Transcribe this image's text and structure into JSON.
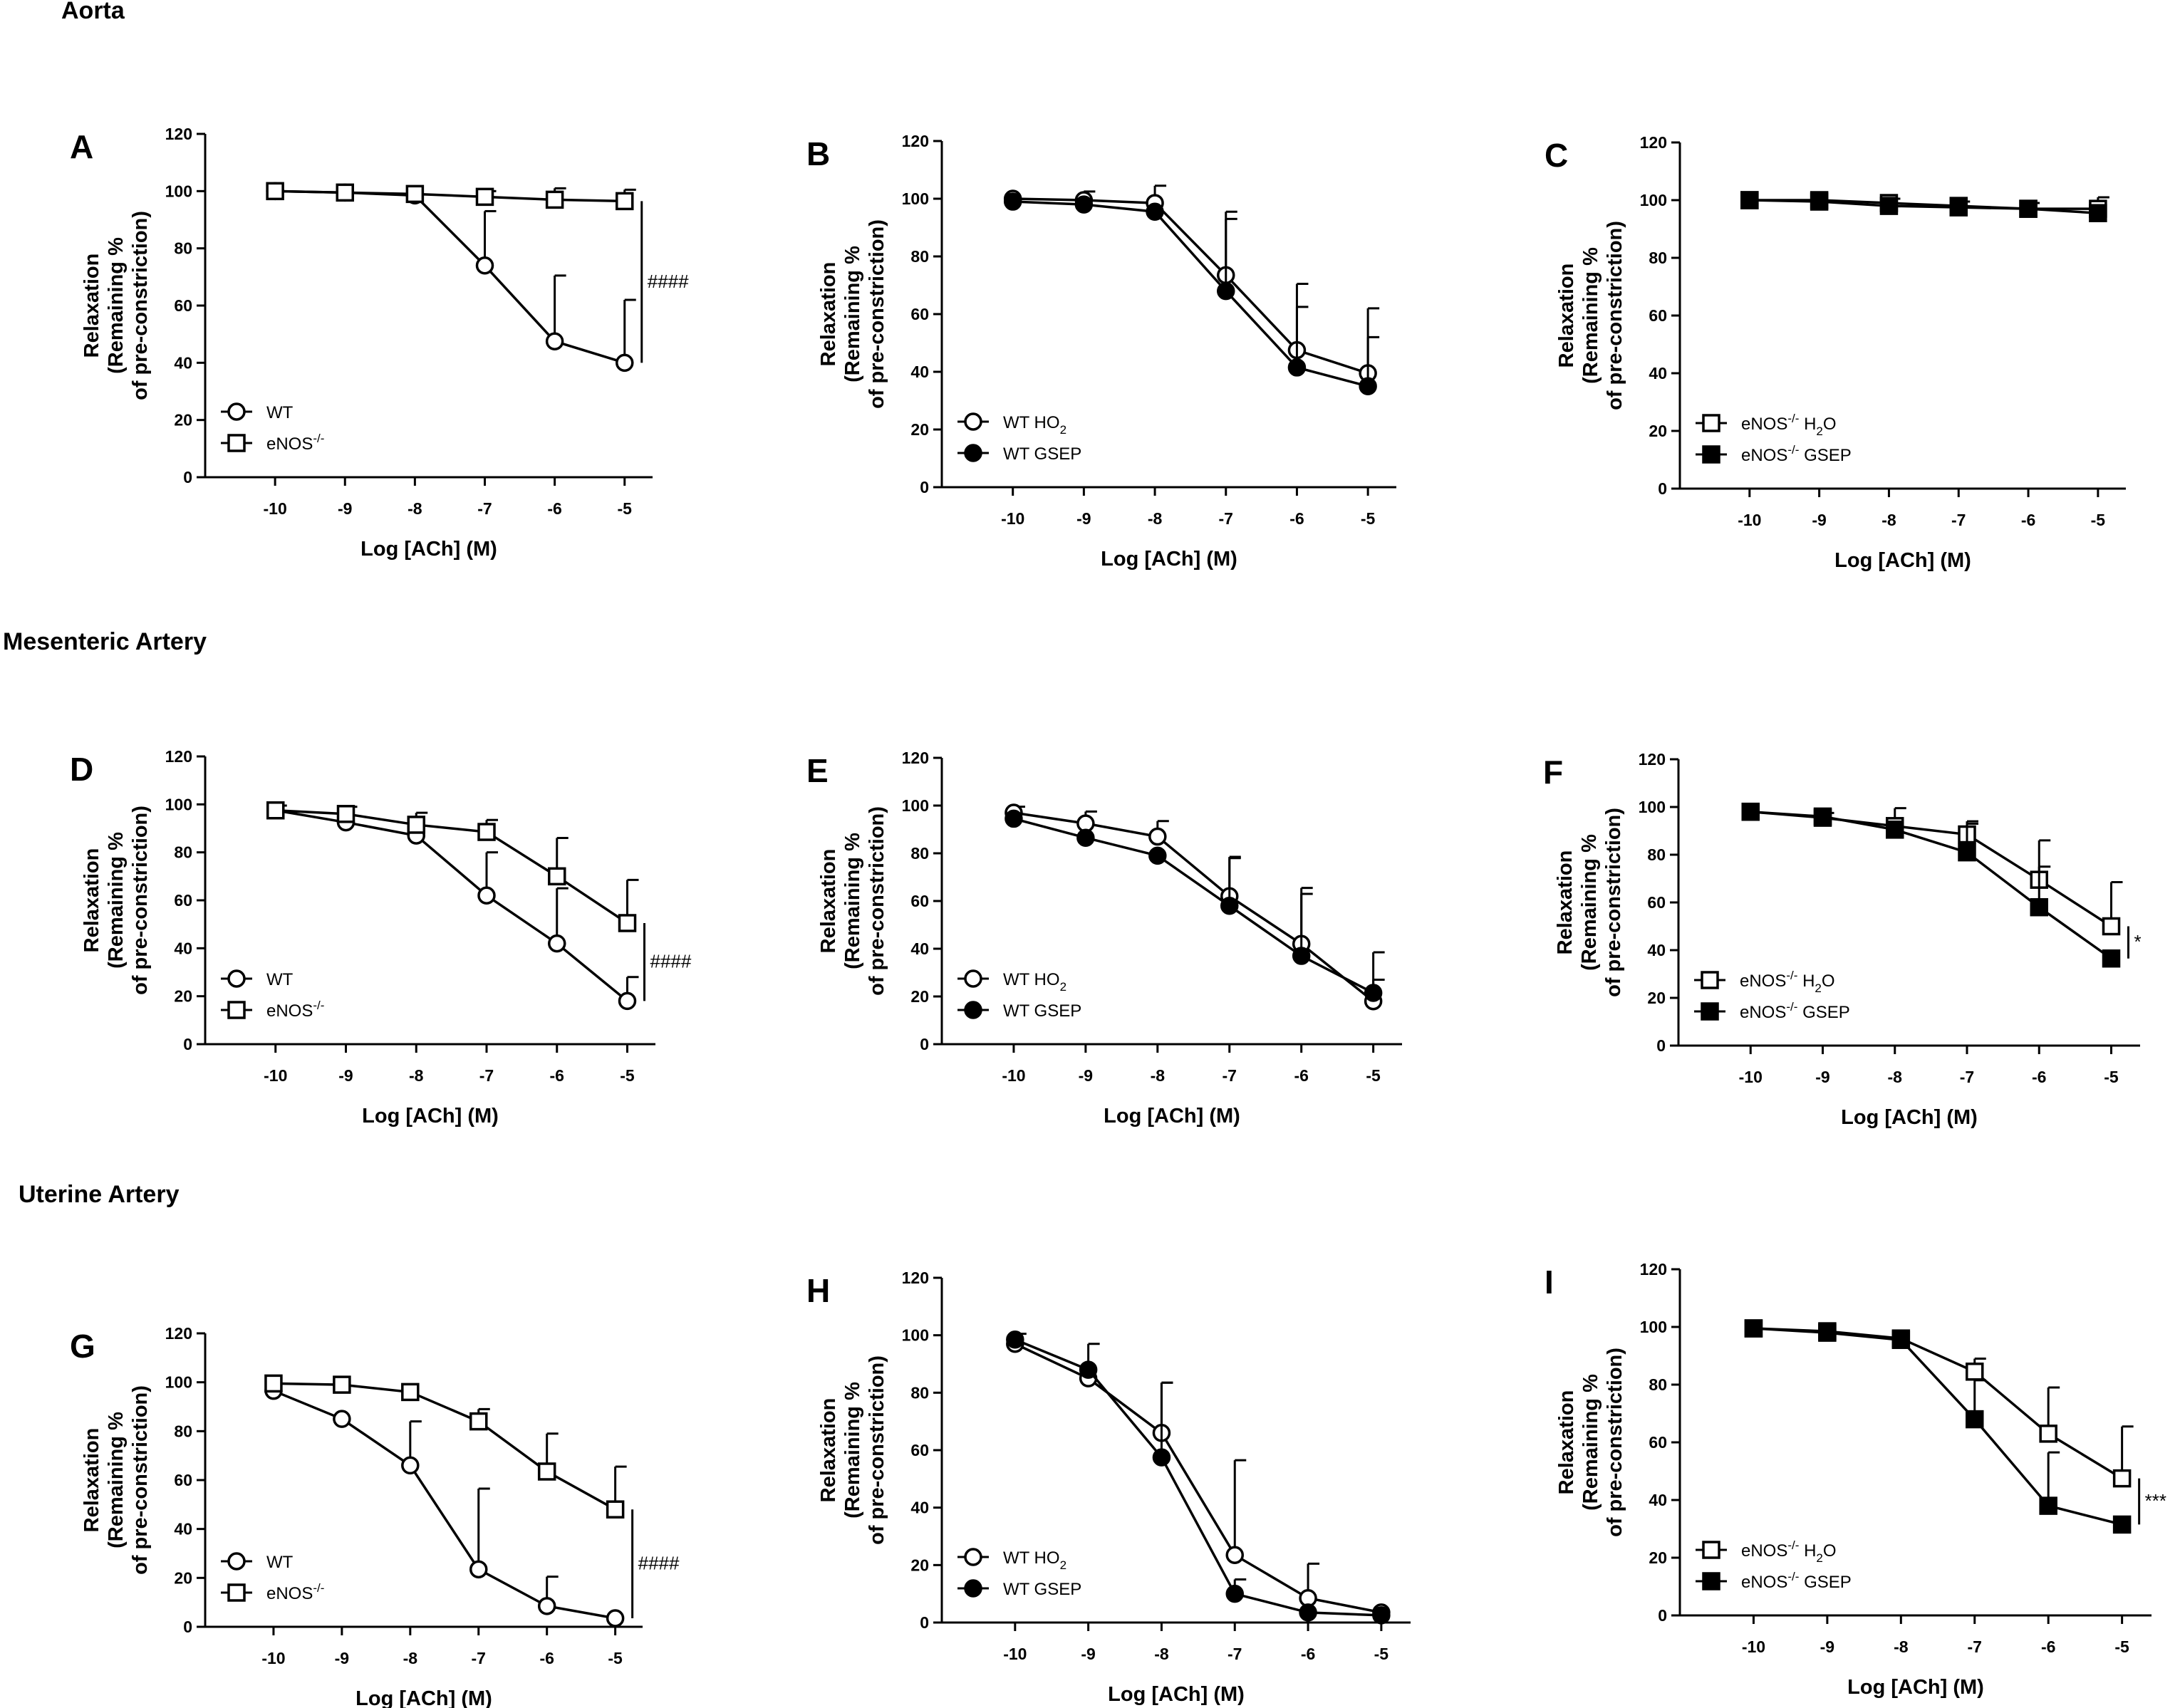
{
  "figure": {
    "sections": [
      "Aorta",
      "Mesenteric Artery",
      "Uterine Artery"
    ]
  },
  "chart_data": [
    {
      "panel": "A",
      "type": "line",
      "xlabel": "Log [ACh] (M)",
      "ylabel": [
        "Relaxation",
        "(Remaining %",
        "of pre-constriction)"
      ],
      "x": [
        -10,
        -9,
        -8,
        -7,
        -6,
        -5
      ],
      "xlim": [
        -11,
        -4.6
      ],
      "ylim": [
        0,
        120
      ],
      "xticks": [
        "-10",
        "-9",
        "-8",
        "-7",
        "-6",
        "-5"
      ],
      "yticks": [
        "0",
        "20",
        "40",
        "60",
        "80",
        "100",
        "120"
      ],
      "series": [
        {
          "name": "WT",
          "sup": "",
          "marker": "circle-open",
          "values": [
            100,
            99.5,
            98.5,
            74,
            47.5,
            40
          ],
          "errors": [
            0,
            0,
            0,
            19,
            23,
            22
          ]
        },
        {
          "name": "eNOS",
          "sup": "-/-",
          "marker": "square-open",
          "values": [
            100,
            99.5,
            99,
            98,
            97,
            96.5
          ],
          "errors": [
            0,
            0,
            0,
            2,
            4,
            4
          ]
        }
      ],
      "legend": "bottom-left",
      "significance": {
        "label": "####",
        "from": 96.5,
        "to": 40
      }
    },
    {
      "panel": "B",
      "type": "line",
      "xlabel": "Log [ACh] (M)",
      "ylabel": [
        "Relaxation",
        "(Remaining %",
        "of pre-constriction)"
      ],
      "x": [
        -10,
        -9,
        -8,
        -7,
        -6,
        -5
      ],
      "xlim": [
        -11,
        -4.6
      ],
      "ylim": [
        0,
        120
      ],
      "xticks": [
        "-10",
        "-9",
        "-8",
        "-7",
        "-6",
        "-5"
      ],
      "yticks": [
        "0",
        "20",
        "40",
        "60",
        "80",
        "100",
        "120"
      ],
      "series": [
        {
          "name": "WT H",
          "sub": "2",
          "after": "O",
          "marker": "circle-open",
          "values": [
            100,
            99.5,
            98.5,
            73.5,
            47.5,
            39.5
          ],
          "errors": [
            0,
            3,
            6,
            22,
            23,
            22.5
          ]
        },
        {
          "name": "WT GSEP",
          "marker": "circle-filled",
          "values": [
            99,
            98,
            95.5,
            68,
            41.5,
            35
          ],
          "errors": [
            0,
            0,
            0,
            25,
            21,
            17
          ]
        }
      ],
      "legend": "bottom-left"
    },
    {
      "panel": "C",
      "type": "line",
      "xlabel": "Log [ACh] (M)",
      "ylabel": [
        "Relaxation",
        "(Remaining %",
        "of pre-constriction)"
      ],
      "x": [
        -10,
        -9,
        -8,
        -7,
        -6,
        -5
      ],
      "xlim": [
        -11,
        -4.6
      ],
      "ylim": [
        0,
        120
      ],
      "xticks": [
        "-10",
        "-9",
        "-8",
        "-7",
        "-6",
        "-5"
      ],
      "yticks": [
        "0",
        "20",
        "40",
        "60",
        "80",
        "100",
        "120"
      ],
      "series": [
        {
          "name": "eNOS",
          "sup": "-/-",
          "after": " H",
          "sub": "2",
          "after2": "O",
          "marker": "square-open",
          "values": [
            100,
            100,
            99,
            98,
            97,
            97
          ],
          "errors": [
            0,
            0,
            1.5,
            1.5,
            2,
            4
          ]
        },
        {
          "name": "eNOS",
          "sup": "-/-",
          "after": " GSEP",
          "marker": "square-filled",
          "values": [
            100,
            99.5,
            98,
            97.5,
            97,
            95.5
          ],
          "errors": [
            0,
            0,
            0,
            0,
            0,
            0
          ]
        }
      ],
      "legend": "bottom-left"
    },
    {
      "panel": "D",
      "type": "line",
      "xlabel": "Log [ACh] (M)",
      "ylabel": [
        "Relaxation",
        "(Remaining %",
        "of pre-constriction)"
      ],
      "x": [
        -10,
        -9,
        -8,
        -7,
        -6,
        -5
      ],
      "xlim": [
        -11,
        -4.6
      ],
      "ylim": [
        0,
        120
      ],
      "xticks": [
        "-10",
        "-9",
        "-8",
        "-7",
        "-6",
        "-5"
      ],
      "yticks": [
        "0",
        "20",
        "40",
        "60",
        "80",
        "100",
        "120"
      ],
      "series": [
        {
          "name": "WT",
          "sup": "",
          "marker": "circle-open",
          "values": [
            97.5,
            92.5,
            87,
            62,
            42,
            18
          ],
          "errors": [
            0,
            0,
            0,
            18,
            23,
            10
          ]
        },
        {
          "name": "eNOS",
          "sup": "-/-",
          "marker": "square-open",
          "values": [
            97.5,
            96,
            91.5,
            88.5,
            70,
            50.5
          ],
          "errors": [
            2,
            3,
            5,
            5,
            16,
            18
          ]
        }
      ],
      "legend": "bottom-left",
      "significance": {
        "label": "####",
        "from": 50.5,
        "to": 18
      }
    },
    {
      "panel": "E",
      "type": "line",
      "xlabel": "Log [ACh] (M)",
      "ylabel": [
        "Relaxation",
        "(Remaining %",
        "of pre-constriction)"
      ],
      "x": [
        -10,
        -9,
        -8,
        -7,
        -6,
        -5
      ],
      "xlim": [
        -11,
        -4.6
      ],
      "ylim": [
        0,
        120
      ],
      "xticks": [
        "-10",
        "-9",
        "-8",
        "-7",
        "-6",
        "-5"
      ],
      "yticks": [
        "0",
        "20",
        "40",
        "60",
        "80",
        "100",
        "120"
      ],
      "series": [
        {
          "name": "WT H",
          "sub": "2",
          "after": "O",
          "marker": "circle-open",
          "values": [
            97,
            92.5,
            87,
            62,
            42,
            18
          ],
          "errors": [
            2.5,
            5,
            6.5,
            16.5,
            23.5,
            9
          ]
        },
        {
          "name": "WT GSEP",
          "marker": "circle-filled",
          "values": [
            94.5,
            86.5,
            79,
            58,
            37,
            21.5
          ],
          "errors": [
            0,
            0,
            0,
            20,
            26,
            17
          ]
        }
      ],
      "legend": "bottom-left"
    },
    {
      "panel": "F",
      "type": "line",
      "xlabel": "Log [ACh] (M)",
      "ylabel": [
        "Relaxation",
        "(Remaining %",
        "of pre-constriction)"
      ],
      "x": [
        -10,
        -9,
        -8,
        -7,
        -6,
        -5
      ],
      "xlim": [
        -11,
        -4.6
      ],
      "ylim": [
        0,
        120
      ],
      "xticks": [
        "-10",
        "-9",
        "-8",
        "-7",
        "-6",
        "-5"
      ],
      "yticks": [
        "0",
        "20",
        "40",
        "60",
        "80",
        "100",
        "120"
      ],
      "series": [
        {
          "name": "eNOS",
          "sup": "-/-",
          "after": " H",
          "sub": "2",
          "after2": "O",
          "marker": "square-open",
          "values": [
            98,
            95.5,
            92,
            88.5,
            69.5,
            50
          ],
          "errors": [
            0,
            2,
            7.5,
            5.5,
            16.5,
            18.5
          ]
        },
        {
          "name": "eNOS",
          "sup": "-/-",
          "after": " GSEP",
          "marker": "square-filled",
          "values": [
            98,
            96,
            90.5,
            81,
            58,
            36.5
          ],
          "errors": [
            0,
            0,
            0,
            12,
            17,
            0
          ]
        }
      ],
      "legend": "bottom-left",
      "significance": {
        "label": "*",
        "from": 50,
        "to": 36.5
      }
    },
    {
      "panel": "G",
      "type": "line",
      "xlabel": "Log [ACh] (M)",
      "ylabel": [
        "Relaxation",
        "(Remaining %",
        "of pre-constriction)"
      ],
      "x": [
        -10,
        -9,
        -8,
        -7,
        -6,
        -5
      ],
      "xlim": [
        -11,
        -4.6
      ],
      "ylim": [
        0,
        120
      ],
      "xticks": [
        "-10",
        "-9",
        "-8",
        "-7",
        "-6",
        "-5"
      ],
      "yticks": [
        "0",
        "20",
        "40",
        "60",
        "80",
        "100",
        "120"
      ],
      "series": [
        {
          "name": "WT",
          "sup": "",
          "marker": "circle-open",
          "values": [
            96.5,
            85,
            66,
            23.5,
            8.5,
            3.5
          ],
          "errors": [
            0,
            0,
            18,
            33,
            12,
            0
          ]
        },
        {
          "name": "eNOS",
          "sup": "-/-",
          "marker": "square-open",
          "values": [
            99.5,
            99,
            96,
            84,
            63.5,
            48
          ],
          "errors": [
            0,
            0,
            0,
            5,
            15.5,
            17.5
          ]
        }
      ],
      "legend": "bottom-left",
      "significance": {
        "label": "####",
        "from": 48,
        "to": 3.5
      }
    },
    {
      "panel": "H",
      "type": "line",
      "xlabel": "Log [ACh] (M)",
      "ylabel": [
        "Relaxation",
        "(Remaining %",
        "of pre-constriction)"
      ],
      "x": [
        -10,
        -9,
        -8,
        -7,
        -6,
        -5
      ],
      "xlim": [
        -11,
        -4.6
      ],
      "ylim": [
        0,
        120
      ],
      "xticks": [
        "-10",
        "-9",
        "-8",
        "-7",
        "-6",
        "-5"
      ],
      "yticks": [
        "0",
        "20",
        "40",
        "60",
        "80",
        "100",
        "120"
      ],
      "series": [
        {
          "name": "WT H",
          "sub": "2",
          "after": "O",
          "marker": "circle-open",
          "values": [
            97,
            85,
            66,
            23.5,
            8.5,
            3.5
          ],
          "errors": [
            0,
            0,
            17.5,
            33,
            12,
            0
          ]
        },
        {
          "name": "WT GSEP",
          "marker": "circle-filled",
          "values": [
            98.5,
            88,
            57.5,
            10,
            3.5,
            2.5
          ],
          "errors": [
            2,
            9,
            26,
            5,
            0,
            0
          ]
        }
      ],
      "legend": "bottom-left"
    },
    {
      "panel": "I",
      "type": "line",
      "xlabel": "Log [ACh] (M)",
      "ylabel": [
        "Relaxation",
        "(Remaining %",
        "of pre-constriction)"
      ],
      "x": [
        -10,
        -9,
        -8,
        -7,
        -6,
        -5
      ],
      "xlim": [
        -11,
        -4.6
      ],
      "ylim": [
        0,
        120
      ],
      "xticks": [
        "-10",
        "-9",
        "-8",
        "-7",
        "-6",
        "-5"
      ],
      "yticks": [
        "0",
        "20",
        "40",
        "60",
        "80",
        "100",
        "120"
      ],
      "series": [
        {
          "name": "eNOS",
          "sup": "-/-",
          "after": " H",
          "sub": "2",
          "after2": "O",
          "marker": "square-open",
          "values": [
            99.5,
            98.5,
            96,
            84.5,
            63,
            47.5
          ],
          "errors": [
            0,
            0,
            0,
            4.5,
            16,
            18
          ]
        },
        {
          "name": "eNOS",
          "sup": "-/-",
          "after": " GSEP",
          "marker": "square-filled",
          "values": [
            99.5,
            98,
            95.5,
            68,
            38,
            31.5
          ],
          "errors": [
            0,
            0,
            0,
            13.5,
            18.5,
            0
          ]
        }
      ],
      "legend": "bottom-left",
      "significance": {
        "label": "***",
        "from": 47.5,
        "to": 31.5
      }
    }
  ]
}
